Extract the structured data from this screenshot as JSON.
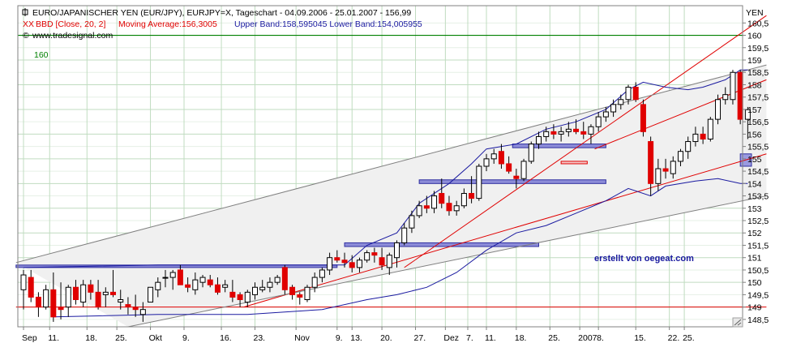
{
  "header": {
    "title": "EURO/JAPANISCHER YEN (EUR/JPY), EURJPY=X, Tageschart - 04.09.2006 - 25.01.2007 - 156,99",
    "indicator_prefix": "XX",
    "indicator": "BBD [Close, 20, 2]",
    "ma_text": "Moving Average:156,3005",
    "bands_text": "Upper Band:158,595045 Lower Band:154,005955",
    "source": "www.tradesignal.com",
    "currency": "YEN"
  },
  "watermark": "erstellt von oegeat.com",
  "level_label": "160",
  "colors": {
    "bull": "#ffffff",
    "bear": "#e00000",
    "band": "#1a1aa0",
    "ma": "#e00000",
    "trend": "#e00000",
    "channel": "#808080",
    "level": "#008000",
    "zone": "#8c8cd8"
  },
  "chart_data": {
    "type": "candlestick",
    "ylim": [
      148.2,
      161.2
    ],
    "y_tick_labels": [
      "148,5",
      "149",
      "149,5",
      "150",
      "150,5",
      "151",
      "151,5",
      "152",
      "152,5",
      "153",
      "153,5",
      "154",
      "154,5",
      "155",
      "155,5",
      "156",
      "156,5",
      "157",
      "157,5",
      "158",
      "158,5",
      "159",
      "159,5",
      "160",
      "160,5"
    ],
    "x_tick_labels": [
      "Sep",
      "11.",
      "18.",
      "25.",
      "Okt",
      "9.",
      "16.",
      "23.",
      "Nov",
      "9.",
      "13.",
      "20.",
      "27.",
      "Dez",
      "7.",
      "11.",
      "18.",
      "25.",
      "2007",
      "8.",
      "15.",
      "22.",
      "25."
    ],
    "candles": [
      {
        "o": 149.7,
        "h": 150.5,
        "l": 148.9,
        "c": 150.3
      },
      {
        "o": 150.2,
        "h": 150.5,
        "l": 149.2,
        "c": 149.4
      },
      {
        "o": 149.4,
        "h": 149.6,
        "l": 148.6,
        "c": 149.0
      },
      {
        "o": 149.0,
        "h": 149.9,
        "l": 148.9,
        "c": 149.7
      },
      {
        "o": 149.7,
        "h": 150.4,
        "l": 148.4,
        "c": 148.6
      },
      {
        "o": 149.0,
        "h": 150.0,
        "l": 148.5,
        "c": 148.9
      },
      {
        "o": 149.0,
        "h": 149.9,
        "l": 148.6,
        "c": 149.8
      },
      {
        "o": 149.8,
        "h": 150.1,
        "l": 149.1,
        "c": 149.3
      },
      {
        "o": 149.2,
        "h": 150.1,
        "l": 149.0,
        "c": 149.9
      },
      {
        "o": 149.9,
        "h": 150.1,
        "l": 149.3,
        "c": 149.6
      },
      {
        "o": 149.6,
        "h": 150.1,
        "l": 148.9,
        "c": 149.0
      },
      {
        "o": 149.5,
        "h": 149.8,
        "l": 149.0,
        "c": 149.6
      },
      {
        "o": 149.6,
        "h": 150.5,
        "l": 149.4,
        "c": 149.5
      },
      {
        "o": 149.2,
        "h": 149.7,
        "l": 148.9,
        "c": 149.3
      },
      {
        "o": 149.1,
        "h": 149.4,
        "l": 148.7,
        "c": 149.0
      },
      {
        "o": 149.0,
        "h": 149.5,
        "l": 148.6,
        "c": 148.9
      },
      {
        "o": 148.7,
        "h": 149.2,
        "l": 148.4,
        "c": 148.9
      },
      {
        "o": 149.2,
        "h": 149.8,
        "l": 149.2,
        "c": 149.8
      },
      {
        "o": 149.7,
        "h": 150.2,
        "l": 149.4,
        "c": 150.0
      },
      {
        "o": 150.2,
        "h": 150.5,
        "l": 149.8,
        "c": 150.2
      },
      {
        "o": 150.2,
        "h": 150.5,
        "l": 149.7,
        "c": 150.4
      },
      {
        "o": 150.5,
        "h": 150.7,
        "l": 150.0,
        "c": 149.9
      },
      {
        "o": 149.9,
        "h": 150.2,
        "l": 149.6,
        "c": 149.8
      },
      {
        "o": 149.7,
        "h": 150.4,
        "l": 149.5,
        "c": 150.1
      },
      {
        "o": 150.0,
        "h": 150.3,
        "l": 149.8,
        "c": 150.2
      },
      {
        "o": 150.1,
        "h": 150.3,
        "l": 149.8,
        "c": 149.9
      },
      {
        "o": 149.9,
        "h": 150.2,
        "l": 149.5,
        "c": 149.6
      },
      {
        "o": 149.8,
        "h": 150.1,
        "l": 149.6,
        "c": 149.9
      },
      {
        "o": 149.6,
        "h": 150.1,
        "l": 149.2,
        "c": 149.4
      },
      {
        "o": 149.5,
        "h": 149.6,
        "l": 149.0,
        "c": 149.3
      },
      {
        "o": 149.2,
        "h": 149.7,
        "l": 149.0,
        "c": 149.6
      },
      {
        "o": 149.5,
        "h": 150.0,
        "l": 149.3,
        "c": 149.8
      },
      {
        "o": 149.7,
        "h": 150.1,
        "l": 149.6,
        "c": 149.8
      },
      {
        "o": 149.8,
        "h": 150.2,
        "l": 149.6,
        "c": 150.0
      },
      {
        "o": 150.0,
        "h": 150.3,
        "l": 149.9,
        "c": 150.2
      },
      {
        "o": 150.6,
        "h": 150.7,
        "l": 149.5,
        "c": 149.7
      },
      {
        "o": 149.8,
        "h": 149.9,
        "l": 149.3,
        "c": 149.5
      },
      {
        "o": 149.5,
        "h": 149.6,
        "l": 149.1,
        "c": 149.4
      },
      {
        "o": 149.3,
        "h": 149.9,
        "l": 149.2,
        "c": 149.8
      },
      {
        "o": 149.8,
        "h": 150.4,
        "l": 149.6,
        "c": 150.2
      },
      {
        "o": 150.2,
        "h": 150.6,
        "l": 150.0,
        "c": 150.5
      },
      {
        "o": 150.5,
        "h": 151.2,
        "l": 150.3,
        "c": 151.0
      },
      {
        "o": 151.0,
        "h": 151.3,
        "l": 150.8,
        "c": 150.9
      },
      {
        "o": 150.9,
        "h": 151.2,
        "l": 150.6,
        "c": 150.8
      },
      {
        "o": 150.8,
        "h": 151.1,
        "l": 150.4,
        "c": 150.6
      },
      {
        "o": 150.6,
        "h": 151.0,
        "l": 150.4,
        "c": 150.9
      },
      {
        "o": 150.9,
        "h": 151.3,
        "l": 150.8,
        "c": 151.2
      },
      {
        "o": 151.2,
        "h": 151.4,
        "l": 150.8,
        "c": 151.1
      },
      {
        "o": 151.0,
        "h": 151.4,
        "l": 150.5,
        "c": 150.7
      },
      {
        "o": 150.6,
        "h": 151.2,
        "l": 150.3,
        "c": 151.1
      },
      {
        "o": 151.0,
        "h": 151.7,
        "l": 150.6,
        "c": 151.6
      },
      {
        "o": 151.6,
        "h": 152.4,
        "l": 151.5,
        "c": 152.2
      },
      {
        "o": 152.2,
        "h": 152.9,
        "l": 152.0,
        "c": 152.7
      },
      {
        "o": 152.7,
        "h": 153.3,
        "l": 152.6,
        "c": 153.1
      },
      {
        "o": 153.1,
        "h": 153.5,
        "l": 152.8,
        "c": 153.0
      },
      {
        "o": 153.0,
        "h": 153.7,
        "l": 152.8,
        "c": 153.5
      },
      {
        "o": 153.6,
        "h": 154.2,
        "l": 153.0,
        "c": 153.2
      },
      {
        "o": 153.2,
        "h": 153.5,
        "l": 152.7,
        "c": 152.9
      },
      {
        "o": 152.9,
        "h": 153.3,
        "l": 152.7,
        "c": 153.1
      },
      {
        "o": 153.1,
        "h": 153.8,
        "l": 153.0,
        "c": 153.6
      },
      {
        "o": 153.6,
        "h": 154.3,
        "l": 153.2,
        "c": 153.4
      },
      {
        "o": 153.4,
        "h": 154.8,
        "l": 153.3,
        "c": 154.7
      },
      {
        "o": 154.7,
        "h": 155.2,
        "l": 154.5,
        "c": 155.0
      },
      {
        "o": 155.0,
        "h": 155.4,
        "l": 154.8,
        "c": 155.2
      },
      {
        "o": 155.3,
        "h": 155.6,
        "l": 154.6,
        "c": 154.8
      },
      {
        "o": 154.8,
        "h": 155.1,
        "l": 154.4,
        "c": 154.5
      },
      {
        "o": 154.3,
        "h": 154.6,
        "l": 153.8,
        "c": 154.2
      },
      {
        "o": 154.2,
        "h": 155.0,
        "l": 154.1,
        "c": 154.9
      },
      {
        "o": 154.9,
        "h": 155.7,
        "l": 154.8,
        "c": 155.6
      },
      {
        "o": 155.6,
        "h": 156.1,
        "l": 155.4,
        "c": 155.9
      },
      {
        "o": 155.9,
        "h": 156.3,
        "l": 155.7,
        "c": 156.1
      },
      {
        "o": 156.1,
        "h": 156.4,
        "l": 155.8,
        "c": 156.0
      },
      {
        "o": 156.0,
        "h": 156.3,
        "l": 155.7,
        "c": 156.1
      },
      {
        "o": 156.1,
        "h": 156.5,
        "l": 155.9,
        "c": 156.2
      },
      {
        "o": 156.2,
        "h": 156.6,
        "l": 156.0,
        "c": 156.1
      },
      {
        "o": 156.1,
        "h": 156.5,
        "l": 155.8,
        "c": 156.0
      },
      {
        "o": 156.0,
        "h": 156.4,
        "l": 155.6,
        "c": 156.3
      },
      {
        "o": 156.3,
        "h": 156.9,
        "l": 156.1,
        "c": 156.7
      },
      {
        "o": 156.7,
        "h": 157.1,
        "l": 156.5,
        "c": 156.9
      },
      {
        "o": 156.9,
        "h": 157.4,
        "l": 156.7,
        "c": 157.2
      },
      {
        "o": 157.2,
        "h": 157.6,
        "l": 157.0,
        "c": 157.4
      },
      {
        "o": 157.4,
        "h": 158.0,
        "l": 157.2,
        "c": 157.9
      },
      {
        "o": 157.9,
        "h": 158.1,
        "l": 157.3,
        "c": 157.4
      },
      {
        "o": 157.2,
        "h": 157.4,
        "l": 155.9,
        "c": 156.1
      },
      {
        "o": 155.7,
        "h": 155.9,
        "l": 153.5,
        "c": 154.0
      },
      {
        "o": 154.0,
        "h": 155.0,
        "l": 153.7,
        "c": 154.6
      },
      {
        "o": 154.6,
        "h": 155.0,
        "l": 154.2,
        "c": 154.5
      },
      {
        "o": 154.4,
        "h": 155.1,
        "l": 154.2,
        "c": 154.9
      },
      {
        "o": 154.9,
        "h": 155.4,
        "l": 154.7,
        "c": 155.3
      },
      {
        "o": 155.3,
        "h": 155.9,
        "l": 155.0,
        "c": 155.7
      },
      {
        "o": 155.7,
        "h": 156.3,
        "l": 155.5,
        "c": 156.0
      },
      {
        "o": 156.0,
        "h": 156.3,
        "l": 155.6,
        "c": 155.8
      },
      {
        "o": 155.8,
        "h": 156.7,
        "l": 155.7,
        "c": 156.6
      },
      {
        "o": 156.6,
        "h": 157.6,
        "l": 156.4,
        "c": 157.4
      },
      {
        "o": 157.4,
        "h": 157.9,
        "l": 157.2,
        "c": 157.6
      },
      {
        "o": 157.4,
        "h": 158.6,
        "l": 157.2,
        "c": 158.5
      },
      {
        "o": 158.5,
        "h": 158.6,
        "l": 156.4,
        "c": 156.6
      },
      {
        "o": 156.6,
        "h": 157.1,
        "l": 155.8,
        "c": 156.99
      }
    ],
    "upper_band": [
      [
        0,
        150.6
      ],
      [
        18,
        150.7
      ],
      [
        36,
        150.7
      ],
      [
        43,
        150.7
      ],
      [
        46,
        151.5
      ],
      [
        50,
        152.0
      ],
      [
        53,
        153.2
      ],
      [
        57,
        154.0
      ],
      [
        60,
        154.8
      ],
      [
        62,
        155.4
      ],
      [
        66,
        155.6
      ],
      [
        70,
        156.2
      ],
      [
        74,
        156.5
      ],
      [
        78,
        157.0
      ],
      [
        81,
        157.8
      ],
      [
        83,
        158.1
      ],
      [
        86,
        157.9
      ],
      [
        89,
        157.8
      ],
      [
        91,
        157.9
      ],
      [
        94,
        158.2
      ],
      [
        96,
        158.6
      ],
      [
        97,
        158.6
      ]
    ],
    "moving_average": [
      [
        0,
        150.0
      ],
      [
        18,
        149.7
      ],
      [
        36,
        149.8
      ],
      [
        50,
        150.6
      ],
      [
        60,
        152.4
      ],
      [
        70,
        153.8
      ],
      [
        80,
        155.1
      ],
      [
        86,
        155.9
      ],
      [
        92,
        156.1
      ],
      [
        97,
        156.3
      ]
    ],
    "lower_band": [
      [
        4,
        148.6
      ],
      [
        18,
        148.7
      ],
      [
        30,
        148.7
      ],
      [
        40,
        148.9
      ],
      [
        46,
        149.3
      ],
      [
        50,
        149.5
      ],
      [
        54,
        149.8
      ],
      [
        58,
        150.4
      ],
      [
        62,
        151.3
      ],
      [
        66,
        152.0
      ],
      [
        70,
        152.3
      ],
      [
        74,
        152.8
      ],
      [
        78,
        153.3
      ],
      [
        81,
        153.8
      ],
      [
        84,
        153.5
      ],
      [
        86,
        153.9
      ],
      [
        90,
        154.1
      ],
      [
        93,
        154.2
      ],
      [
        96,
        154.0
      ],
      [
        97,
        154.0
      ]
    ],
    "trend_lines": [
      {
        "from": [
          29.5,
          149.0
        ],
        "to": [
          99.5,
          155.2
        ],
        "color": "trend"
      },
      {
        "from": [
          51.0,
          150.6
        ],
        "to": [
          99.5,
          160.8
        ],
        "color": "trend"
      },
      {
        "from": [
          76.5,
          155.4
        ],
        "to": [
          99.5,
          158.2
        ],
        "color": "trend"
      },
      {
        "from": [
          -1.0,
          149.0
        ],
        "to": [
          99.5,
          149.0
        ],
        "color": "trend"
      },
      {
        "from": [
          -1.0,
          150.8
        ],
        "to": [
          99.5,
          158.8
        ],
        "color": "channel"
      },
      {
        "from": [
          14.0,
          148.2
        ],
        "to": [
          99.5,
          153.5
        ],
        "color": "channel"
      }
    ],
    "horizontal_level": 160,
    "zones": [
      {
        "x0": -1.0,
        "x1": 42.0,
        "y0": 150.6,
        "y1": 150.7
      },
      {
        "x0": 43.0,
        "x1": 69.0,
        "y0": 151.45,
        "y1": 151.6
      },
      {
        "x0": 53.0,
        "x1": 78.0,
        "y0": 154.0,
        "y1": 154.15
      },
      {
        "x0": 65.5,
        "x1": 78.0,
        "y0": 155.45,
        "y1": 155.6
      },
      {
        "x0": 72.0,
        "x1": 75.5,
        "y0": 154.8,
        "y1": 154.9
      },
      {
        "x0": 96.0,
        "x1": 97.5,
        "y0": 154.7,
        "y1": 155.2
      }
    ],
    "x_tick_positions": [
      0,
      3.5,
      8.5,
      12.5,
      17,
      21.5,
      26.5,
      31,
      36.5,
      42,
      44,
      48,
      52.5,
      56.5,
      59.5,
      62,
      66,
      70.5,
      74.5,
      77,
      82,
      86.5,
      88.5
    ]
  }
}
